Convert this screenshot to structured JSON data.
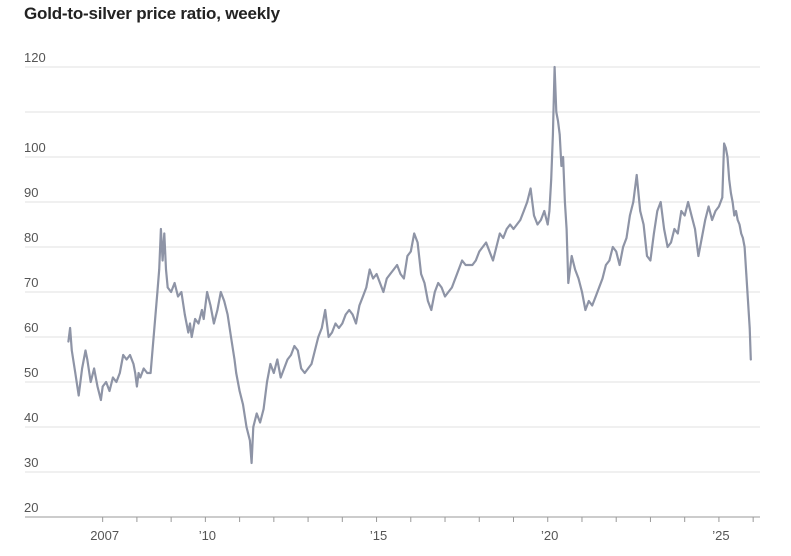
{
  "chart_data": {
    "type": "line",
    "title": "Gold-to-silver price ratio, weekly",
    "xlabel": "",
    "ylabel": "",
    "ylim": [
      20,
      120
    ],
    "xlim": [
      2005.9,
      2026.2
    ],
    "yticks": [
      20,
      30,
      40,
      50,
      60,
      70,
      80,
      90,
      100,
      120
    ],
    "xtick_labels": [
      {
        "x": 2007,
        "label": "2007"
      },
      {
        "x": 2010,
        "label": "’10"
      },
      {
        "x": 2015,
        "label": "’15"
      },
      {
        "x": 2020,
        "label": "’20"
      },
      {
        "x": 2025,
        "label": "’25"
      }
    ],
    "minor_xticks": [
      2008,
      2009,
      2011,
      2012,
      2013,
      2014,
      2016,
      2017,
      2018,
      2019,
      2021,
      2022,
      2023,
      2024,
      2026
    ],
    "grid": true,
    "line_color": "#8e94a6",
    "series": [
      {
        "points": [
          [
            2006.0,
            59
          ],
          [
            2006.05,
            62
          ],
          [
            2006.1,
            57
          ],
          [
            2006.2,
            52
          ],
          [
            2006.3,
            47
          ],
          [
            2006.4,
            53
          ],
          [
            2006.5,
            57
          ],
          [
            2006.55,
            55
          ],
          [
            2006.65,
            50
          ],
          [
            2006.75,
            53
          ],
          [
            2006.85,
            49
          ],
          [
            2006.95,
            46
          ],
          [
            2007.0,
            49
          ],
          [
            2007.1,
            50
          ],
          [
            2007.2,
            48
          ],
          [
            2007.3,
            51
          ],
          [
            2007.4,
            50
          ],
          [
            2007.5,
            52
          ],
          [
            2007.6,
            56
          ],
          [
            2007.7,
            55
          ],
          [
            2007.8,
            56
          ],
          [
            2007.9,
            54
          ],
          [
            2007.95,
            52
          ],
          [
            2008.0,
            49
          ],
          [
            2008.05,
            52
          ],
          [
            2008.1,
            51
          ],
          [
            2008.2,
            53
          ],
          [
            2008.3,
            52
          ],
          [
            2008.4,
            52
          ],
          [
            2008.5,
            61
          ],
          [
            2008.6,
            70
          ],
          [
            2008.65,
            75
          ],
          [
            2008.7,
            84
          ],
          [
            2008.75,
            77
          ],
          [
            2008.8,
            83
          ],
          [
            2008.85,
            75
          ],
          [
            2008.9,
            71
          ],
          [
            2009.0,
            70
          ],
          [
            2009.1,
            72
          ],
          [
            2009.2,
            69
          ],
          [
            2009.3,
            70
          ],
          [
            2009.4,
            65
          ],
          [
            2009.5,
            61
          ],
          [
            2009.55,
            63
          ],
          [
            2009.6,
            60
          ],
          [
            2009.7,
            64
          ],
          [
            2009.8,
            63
          ],
          [
            2009.9,
            66
          ],
          [
            2009.95,
            64
          ],
          [
            2010.05,
            70
          ],
          [
            2010.15,
            67
          ],
          [
            2010.25,
            63
          ],
          [
            2010.35,
            66
          ],
          [
            2010.45,
            70
          ],
          [
            2010.55,
            68
          ],
          [
            2010.65,
            65
          ],
          [
            2010.75,
            60
          ],
          [
            2010.85,
            55
          ],
          [
            2010.9,
            52
          ],
          [
            2011.0,
            48
          ],
          [
            2011.1,
            45
          ],
          [
            2011.2,
            40
          ],
          [
            2011.3,
            37
          ],
          [
            2011.35,
            32
          ],
          [
            2011.4,
            40
          ],
          [
            2011.5,
            43
          ],
          [
            2011.6,
            41
          ],
          [
            2011.7,
            44
          ],
          [
            2011.8,
            50
          ],
          [
            2011.9,
            54
          ],
          [
            2012.0,
            52
          ],
          [
            2012.1,
            55
          ],
          [
            2012.2,
            51
          ],
          [
            2012.3,
            53
          ],
          [
            2012.4,
            55
          ],
          [
            2012.5,
            56
          ],
          [
            2012.6,
            58
          ],
          [
            2012.7,
            57
          ],
          [
            2012.8,
            53
          ],
          [
            2012.9,
            52
          ],
          [
            2013.0,
            53
          ],
          [
            2013.1,
            54
          ],
          [
            2013.2,
            57
          ],
          [
            2013.3,
            60
          ],
          [
            2013.4,
            62
          ],
          [
            2013.5,
            66
          ],
          [
            2013.6,
            60
          ],
          [
            2013.7,
            61
          ],
          [
            2013.8,
            63
          ],
          [
            2013.9,
            62
          ],
          [
            2014.0,
            63
          ],
          [
            2014.1,
            65
          ],
          [
            2014.2,
            66
          ],
          [
            2014.3,
            65
          ],
          [
            2014.4,
            63
          ],
          [
            2014.5,
            67
          ],
          [
            2014.6,
            69
          ],
          [
            2014.7,
            71
          ],
          [
            2014.8,
            75
          ],
          [
            2014.9,
            73
          ],
          [
            2015.0,
            74
          ],
          [
            2015.1,
            72
          ],
          [
            2015.2,
            70
          ],
          [
            2015.3,
            73
          ],
          [
            2015.4,
            74
          ],
          [
            2015.5,
            75
          ],
          [
            2015.6,
            76
          ],
          [
            2015.7,
            74
          ],
          [
            2015.8,
            73
          ],
          [
            2015.9,
            78
          ],
          [
            2016.0,
            79
          ],
          [
            2016.1,
            83
          ],
          [
            2016.2,
            81
          ],
          [
            2016.3,
            74
          ],
          [
            2016.4,
            72
          ],
          [
            2016.5,
            68
          ],
          [
            2016.6,
            66
          ],
          [
            2016.7,
            70
          ],
          [
            2016.8,
            72
          ],
          [
            2016.9,
            71
          ],
          [
            2017.0,
            69
          ],
          [
            2017.1,
            70
          ],
          [
            2017.2,
            71
          ],
          [
            2017.3,
            73
          ],
          [
            2017.4,
            75
          ],
          [
            2017.5,
            77
          ],
          [
            2017.6,
            76
          ],
          [
            2017.7,
            76
          ],
          [
            2017.8,
            76
          ],
          [
            2017.9,
            77
          ],
          [
            2018.0,
            79
          ],
          [
            2018.1,
            80
          ],
          [
            2018.2,
            81
          ],
          [
            2018.3,
            79
          ],
          [
            2018.4,
            77
          ],
          [
            2018.5,
            80
          ],
          [
            2018.6,
            83
          ],
          [
            2018.7,
            82
          ],
          [
            2018.8,
            84
          ],
          [
            2018.9,
            85
          ],
          [
            2019.0,
            84
          ],
          [
            2019.1,
            85
          ],
          [
            2019.2,
            86
          ],
          [
            2019.3,
            88
          ],
          [
            2019.4,
            90
          ],
          [
            2019.5,
            93
          ],
          [
            2019.6,
            87
          ],
          [
            2019.7,
            85
          ],
          [
            2019.8,
            86
          ],
          [
            2019.9,
            88
          ],
          [
            2020.0,
            85
          ],
          [
            2020.05,
            88
          ],
          [
            2020.1,
            95
          ],
          [
            2020.15,
            105
          ],
          [
            2020.2,
            120
          ],
          [
            2020.25,
            110
          ],
          [
            2020.3,
            108
          ],
          [
            2020.35,
            105
          ],
          [
            2020.4,
            98
          ],
          [
            2020.45,
            100
          ],
          [
            2020.5,
            90
          ],
          [
            2020.55,
            84
          ],
          [
            2020.6,
            72
          ],
          [
            2020.7,
            78
          ],
          [
            2020.8,
            75
          ],
          [
            2020.9,
            73
          ],
          [
            2021.0,
            70
          ],
          [
            2021.1,
            66
          ],
          [
            2021.2,
            68
          ],
          [
            2021.3,
            67
          ],
          [
            2021.4,
            69
          ],
          [
            2021.5,
            71
          ],
          [
            2021.6,
            73
          ],
          [
            2021.7,
            76
          ],
          [
            2021.8,
            77
          ],
          [
            2021.9,
            80
          ],
          [
            2022.0,
            79
          ],
          [
            2022.1,
            76
          ],
          [
            2022.2,
            80
          ],
          [
            2022.3,
            82
          ],
          [
            2022.4,
            87
          ],
          [
            2022.5,
            90
          ],
          [
            2022.6,
            96
          ],
          [
            2022.7,
            88
          ],
          [
            2022.8,
            85
          ],
          [
            2022.9,
            78
          ],
          [
            2023.0,
            77
          ],
          [
            2023.1,
            83
          ],
          [
            2023.2,
            88
          ],
          [
            2023.3,
            90
          ],
          [
            2023.4,
            84
          ],
          [
            2023.5,
            80
          ],
          [
            2023.6,
            81
          ],
          [
            2023.7,
            84
          ],
          [
            2023.8,
            83
          ],
          [
            2023.9,
            88
          ],
          [
            2024.0,
            87
          ],
          [
            2024.1,
            90
          ],
          [
            2024.2,
            87
          ],
          [
            2024.3,
            84
          ],
          [
            2024.4,
            78
          ],
          [
            2024.5,
            82
          ],
          [
            2024.6,
            86
          ],
          [
            2024.7,
            89
          ],
          [
            2024.8,
            86
          ],
          [
            2024.9,
            88
          ],
          [
            2025.0,
            89
          ],
          [
            2025.1,
            91
          ],
          [
            2025.15,
            103
          ],
          [
            2025.2,
            102
          ],
          [
            2025.25,
            100
          ],
          [
            2025.3,
            95
          ],
          [
            2025.35,
            92
          ],
          [
            2025.4,
            90
          ],
          [
            2025.45,
            87
          ],
          [
            2025.5,
            88
          ],
          [
            2025.55,
            86
          ],
          [
            2025.6,
            85
          ],
          [
            2025.65,
            83
          ],
          [
            2025.7,
            82
          ],
          [
            2025.75,
            80
          ],
          [
            2025.8,
            74
          ],
          [
            2025.85,
            68
          ],
          [
            2025.9,
            62
          ],
          [
            2025.93,
            55
          ]
        ]
      }
    ]
  }
}
